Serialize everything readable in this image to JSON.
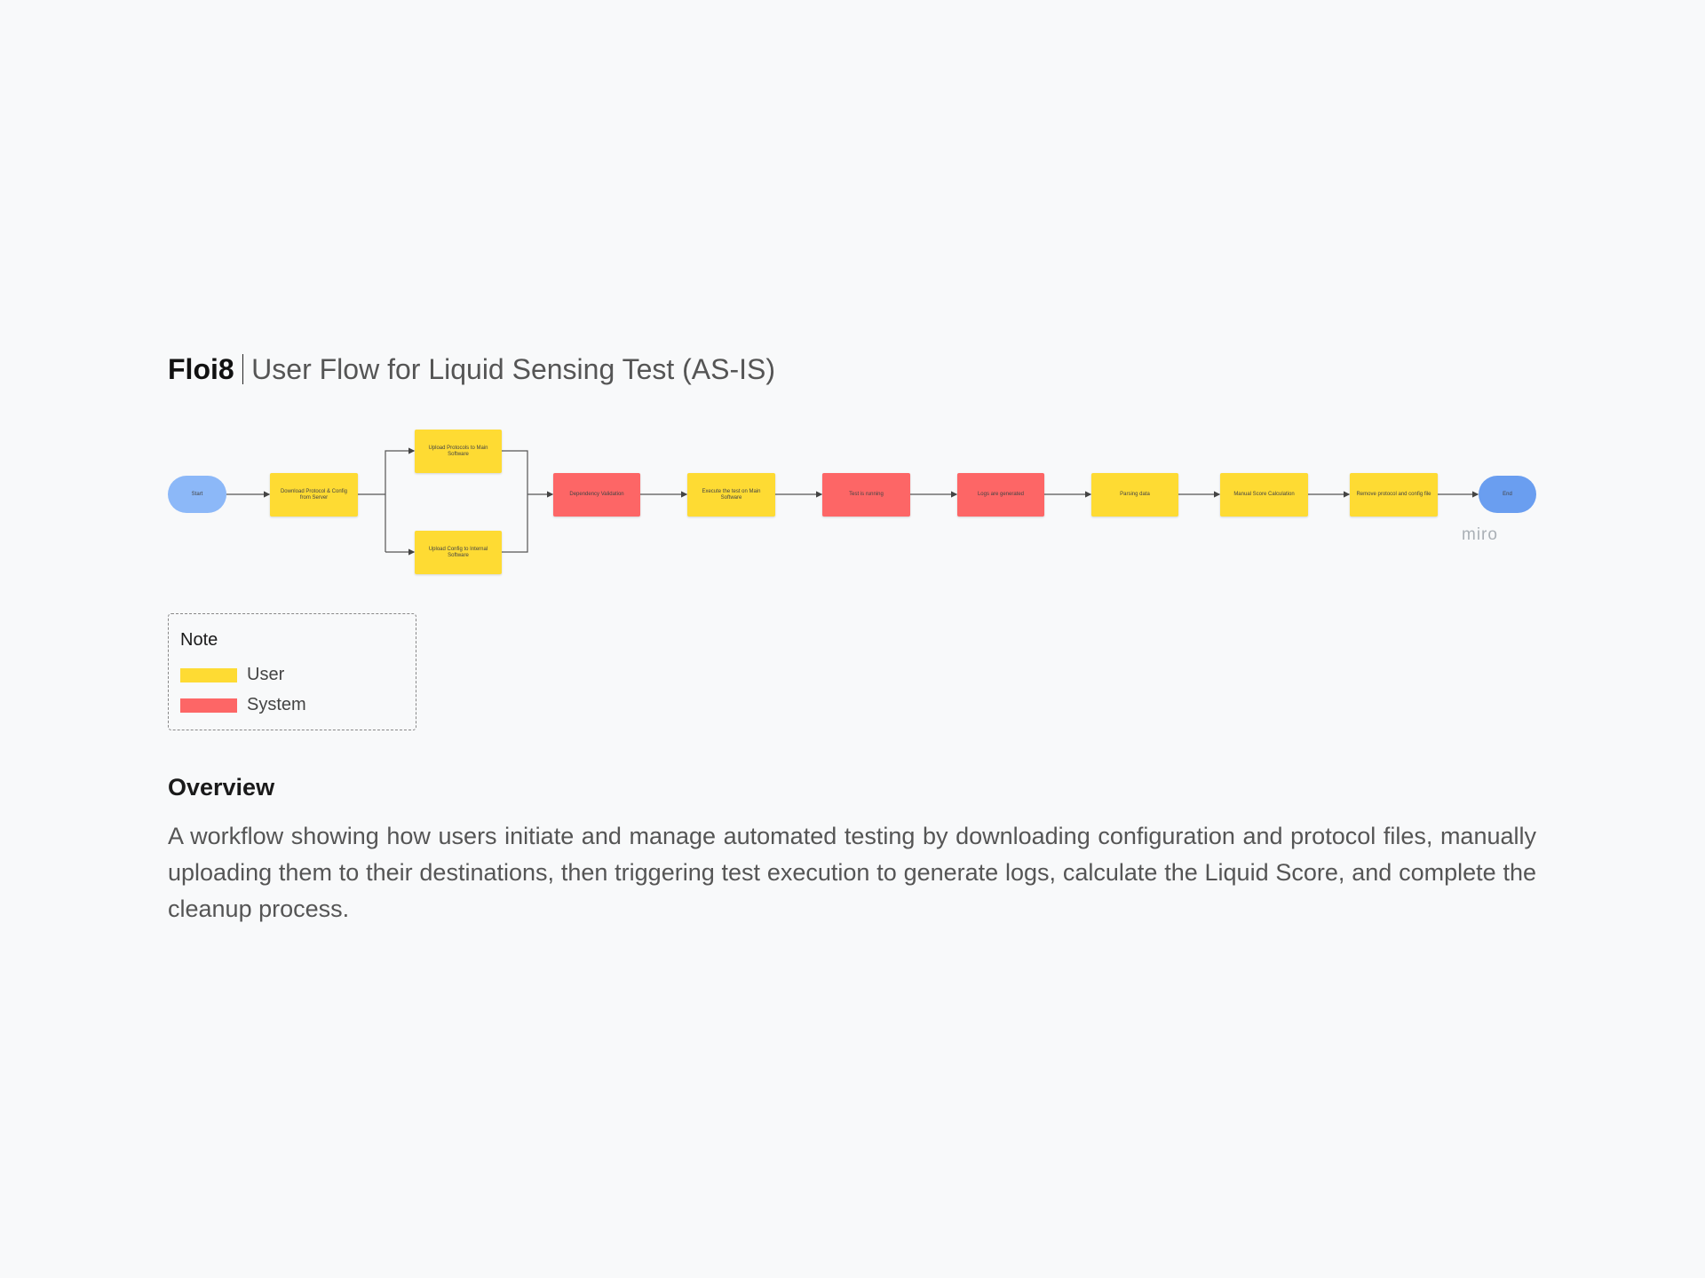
{
  "header": {
    "brand": "Floi8",
    "title": "User Flow for Liquid Sensing Test (AS-IS)"
  },
  "nodes": [
    {
      "label": "Start"
    },
    {
      "label": "Download Protocol & Config from Server"
    },
    {
      "label": "Upload Protocols to Main Software"
    },
    {
      "label": "Upload Config to Internal Software"
    },
    {
      "label": "Dependency Validation"
    },
    {
      "label": "Execute the test on Main Software"
    },
    {
      "label": "Test is running"
    },
    {
      "label": "Logs are generated"
    },
    {
      "label": "Parsing data"
    },
    {
      "label": "Manual Score Calculation"
    },
    {
      "label": "Remove protocol and config file"
    },
    {
      "label": "End"
    }
  ],
  "watermark": "miro",
  "legend": {
    "title": "Note",
    "items": [
      "User",
      "System"
    ]
  },
  "overview": {
    "heading": "Overview",
    "text": "A workflow showing how users initiate and manage automated testing by downloading configuration and protocol files, manually uploading them to their destinations, then triggering test execution to generate logs, calculate the Liquid Score, and complete the cleanup process."
  }
}
